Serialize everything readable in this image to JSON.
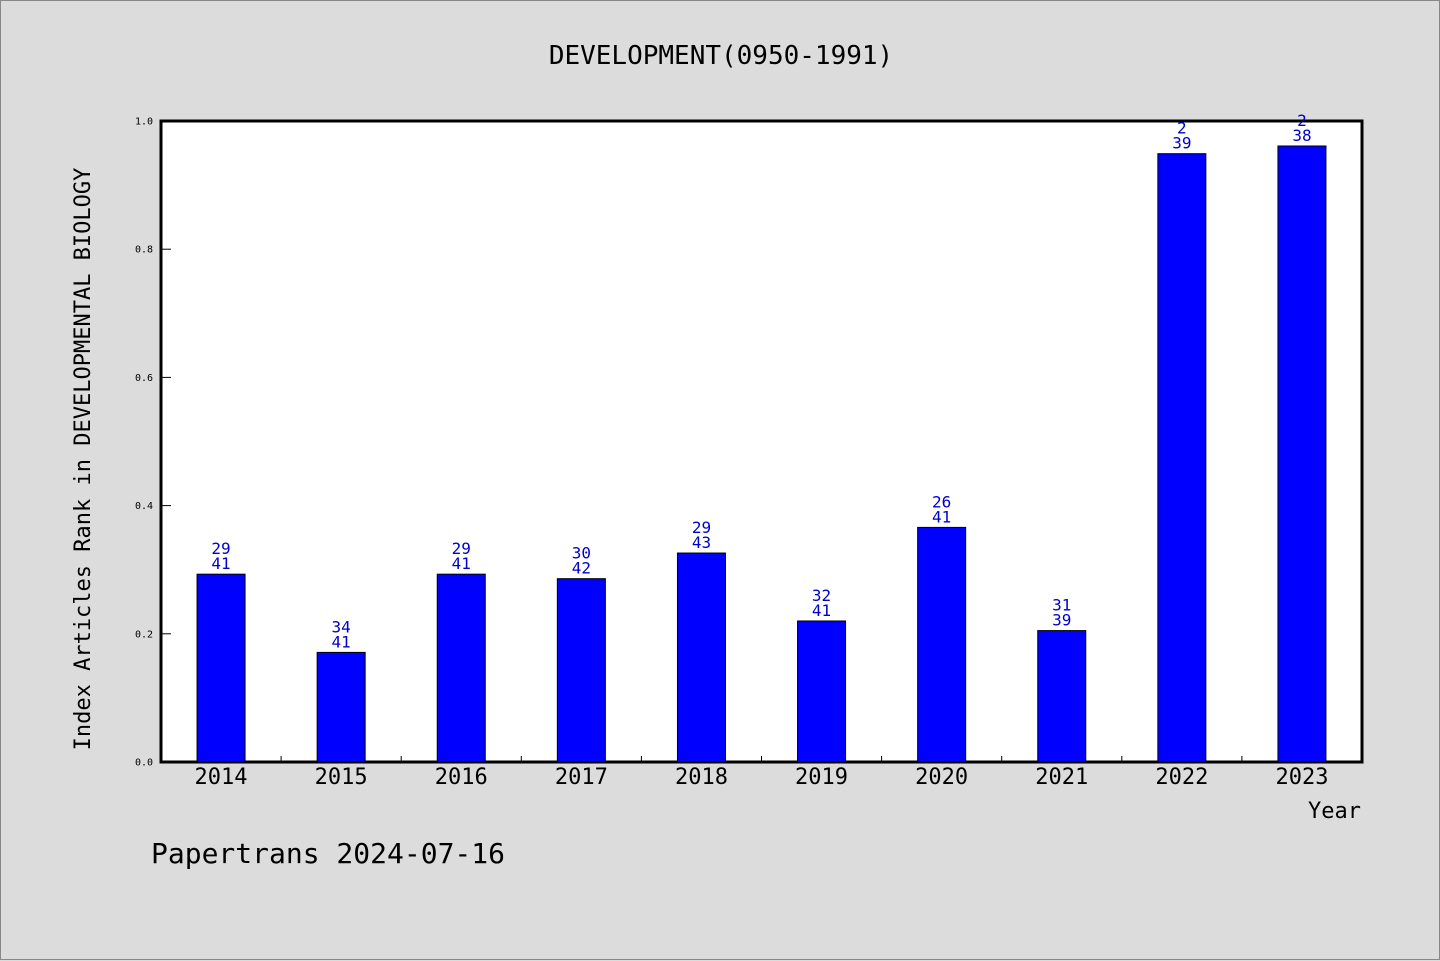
{
  "chart_data": {
    "type": "bar",
    "title": "DEVELOPMENT(0950-1991)",
    "xlabel": "Year",
    "ylabel": "Index Articles Rank in DEVELOPMENTAL BIOLOGY",
    "ylim": [
      0,
      1.0
    ],
    "yticks": [
      "0.0",
      "0.2",
      "0.4",
      "0.6",
      "0.8",
      "1.0"
    ],
    "categories": [
      "2014",
      "2015",
      "2016",
      "2017",
      "2018",
      "2019",
      "2020",
      "2021",
      "2022",
      "2023"
    ],
    "values": [
      0.293,
      0.171,
      0.293,
      0.286,
      0.326,
      0.22,
      0.366,
      0.205,
      0.949,
      0.961
    ],
    "labels_top": [
      "29",
      "34",
      "29",
      "30",
      "29",
      "32",
      "26",
      "31",
      "2",
      "2"
    ],
    "labels_bottom": [
      "41",
      "41",
      "41",
      "42",
      "43",
      "41",
      "41",
      "39",
      "39",
      "38"
    ],
    "bar_color": "#0000ff",
    "grid": false
  },
  "footer": "Papertrans 2024-07-16"
}
